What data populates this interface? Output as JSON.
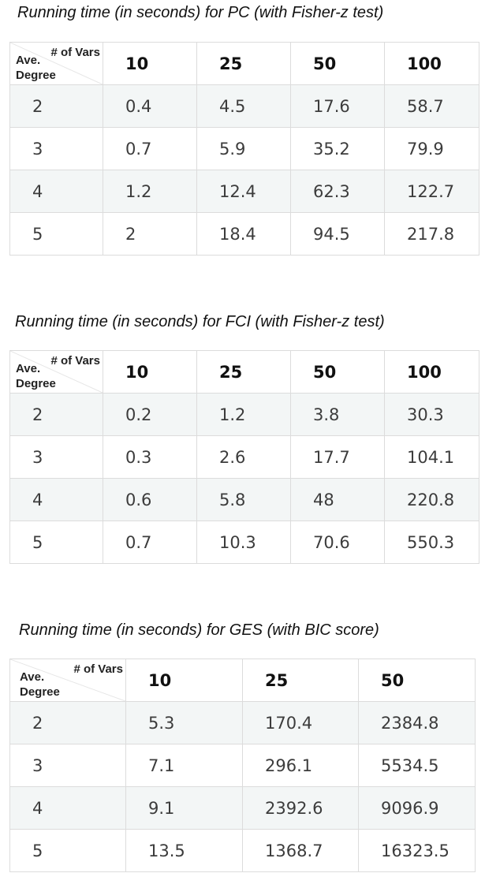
{
  "corner": {
    "vars_label": "# of Vars",
    "ave_label": "Ave.",
    "degree_label": "Degree"
  },
  "tables": [
    {
      "title": "Running time (in seconds) for PC (with Fisher-z test)",
      "columns": [
        "10",
        "25",
        "50",
        "100"
      ],
      "rows": [
        {
          "degree": "2",
          "values": [
            "0.4",
            "4.5",
            "17.6",
            "58.7"
          ]
        },
        {
          "degree": "3",
          "values": [
            "0.7",
            "5.9",
            "35.2",
            "79.9"
          ]
        },
        {
          "degree": "4",
          "values": [
            "1.2",
            "12.4",
            "62.3",
            "122.7"
          ]
        },
        {
          "degree": "5",
          "values": [
            "2",
            "18.4",
            "94.5",
            "217.8"
          ]
        }
      ]
    },
    {
      "title": "Running time (in seconds) for FCI (with Fisher-z test)",
      "columns": [
        "10",
        "25",
        "50",
        "100"
      ],
      "rows": [
        {
          "degree": "2",
          "values": [
            "0.2",
            "1.2",
            "3.8",
            "30.3"
          ]
        },
        {
          "degree": "3",
          "values": [
            "0.3",
            "2.6",
            "17.7",
            "104.1"
          ]
        },
        {
          "degree": "4",
          "values": [
            "0.6",
            "5.8",
            "48",
            "220.8"
          ]
        },
        {
          "degree": "5",
          "values": [
            "0.7",
            "10.3",
            "70.6",
            "550.3"
          ]
        }
      ]
    },
    {
      "title": "Running time (in seconds) for GES (with BIC score)",
      "columns": [
        "10",
        "25",
        "50"
      ],
      "rows": [
        {
          "degree": "2",
          "values": [
            "5.3",
            "170.4",
            "2384.8"
          ]
        },
        {
          "degree": "3",
          "values": [
            "7.1",
            "296.1",
            "5534.5"
          ]
        },
        {
          "degree": "4",
          "values": [
            "9.1",
            "2392.6",
            "9096.9"
          ]
        },
        {
          "degree": "5",
          "values": [
            "13.5",
            "1368.7",
            "16323.5"
          ]
        }
      ]
    }
  ]
}
